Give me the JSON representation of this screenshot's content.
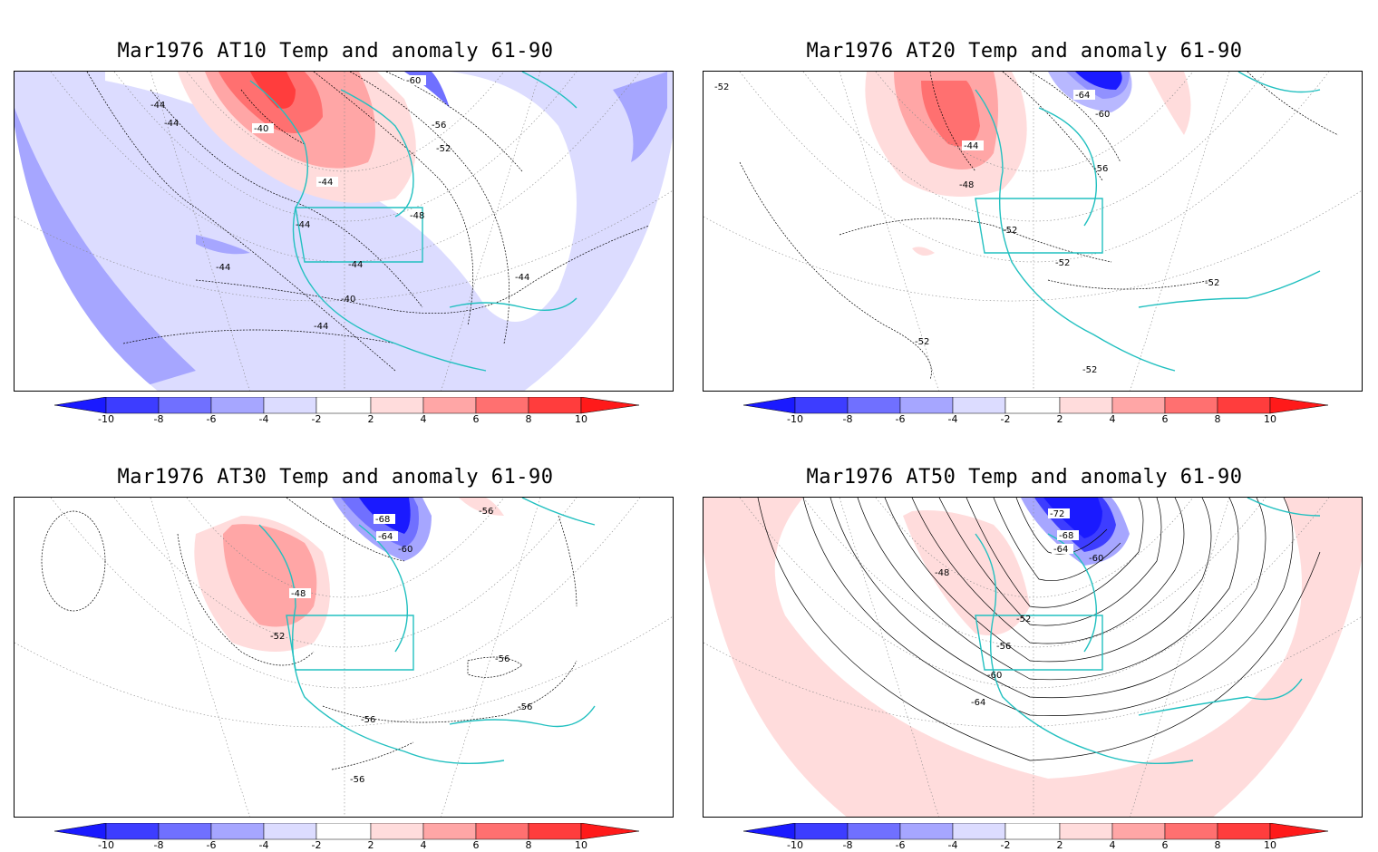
{
  "panels": [
    {
      "id": "at10",
      "title": "Mar1976 AT10 Temp and anomaly 61-90",
      "contour_labels": [
        "-60",
        "-44",
        "-44",
        "-40",
        "-56",
        "-52",
        "-44",
        "-48",
        "-44",
        "-44",
        "-44",
        "-40",
        "-44",
        "-44"
      ],
      "anomaly_regions": [
        "warm anomaly over western North America (+4 to +10)",
        "cool anomaly over Pacific and Atlantic (-2 to -6)"
      ]
    },
    {
      "id": "at20",
      "title": "Mar1976 AT20 Temp and anomaly 61-90",
      "contour_labels": [
        "-52",
        "-64",
        "-60",
        "-44",
        "-56",
        "-48",
        "-52",
        "-52",
        "-52",
        "-52",
        "-52"
      ],
      "anomaly_regions": [
        "warm anomaly over western Canada (+2 to +8)",
        "cold anomaly over Hudson Bay / Greenland (to -10)"
      ]
    },
    {
      "id": "at30",
      "title": "Mar1976 AT30 Temp and anomaly 61-90",
      "contour_labels": [
        "-68",
        "-64",
        "-60",
        "-56",
        "-48",
        "-52",
        "-56",
        "-56",
        "-56",
        "-56"
      ],
      "anomaly_regions": [
        "warm anomaly over western Canada (+2 to +6)",
        "cold anomaly over Baffin / Greenland (to -10)"
      ]
    },
    {
      "id": "at50",
      "title": "Mar1976 AT50 Temp and anomaly 61-90",
      "contour_labels": [
        "-72",
        "-68",
        "-64",
        "-60",
        "-48",
        "-52",
        "-56",
        "-60",
        "-64"
      ],
      "anomaly_regions": [
        "weak warm ring over subtropics (+2 to +4)",
        "cold anomaly over Greenland (to -10)"
      ]
    }
  ],
  "colorbar": {
    "ticks": [
      "-10",
      "-8",
      "-6",
      "-4",
      "-2",
      "2",
      "4",
      "6",
      "8",
      "10"
    ],
    "colors": [
      "#1a1aff",
      "#3d3dff",
      "#7070ff",
      "#a6a6ff",
      "#dcdcff",
      "#ffffff",
      "#ffdcdc",
      "#ffa6a6",
      "#ff7070",
      "#ff3d3d",
      "#ff1a1a"
    ]
  },
  "colors": {
    "coast": "#22c0c0",
    "warm1": "#ffdcdc",
    "warm2": "#ffa6a6",
    "warm3": "#ff7070",
    "warm4": "#ff3d3d",
    "cool1": "#dcdcff",
    "cool2": "#a6a6ff",
    "cool3": "#7070ff",
    "cool4": "#3d3dff",
    "cool5": "#1a1aff"
  }
}
